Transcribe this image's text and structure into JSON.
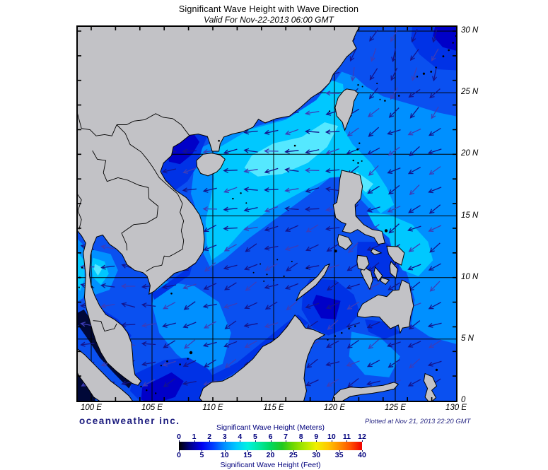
{
  "header": {
    "title": "Significant Wave Height with Wave Direction",
    "subtitle": "Valid For Nov-22-2013 06:00 GMT"
  },
  "map": {
    "x_axis_labels": [
      "100 E",
      "105 E",
      "110 E",
      "115 E",
      "120 E",
      "125 E",
      "130 E"
    ],
    "y_axis_labels": [
      "30 N",
      "25 N",
      "20 N",
      "15 N",
      "10 N",
      "5 N",
      "0"
    ],
    "land_color": "#c2c2c6",
    "coast_color": "#000000",
    "grid_color": "#000000",
    "palette": {
      "b0": "#000838",
      "b1": "#0000c8",
      "b2": "#0032e6",
      "b3": "#0a50f0",
      "b4": "#0090ff",
      "b5": "#00c8ff",
      "b6": "#55e8ff",
      "arrow": "#14148c",
      "arrow_alt": "#3d3db8"
    }
  },
  "branding": {
    "logo_text": "oceanweather inc.",
    "plotted_text": "Plotted at Nov 21, 2013 22:20 GMT"
  },
  "legend": {
    "meters_label": "Significant Wave Height (Meters)",
    "feet_label": "Significant Wave Height (Feet)",
    "meters_ticks": [
      "0",
      "1",
      "2",
      "3",
      "4",
      "5",
      "6",
      "7",
      "8",
      "9",
      "10",
      "11",
      "12"
    ],
    "feet_ticks": [
      "0",
      "5",
      "10",
      "15",
      "20",
      "25",
      "30",
      "35",
      "40"
    ],
    "gradient": [
      "#000000",
      "#00008b",
      "#0000f0",
      "#0040ff",
      "#0090ff",
      "#00c8ff",
      "#00f0e0",
      "#00e8a0",
      "#00d860",
      "#20c820",
      "#70d800",
      "#b0e800",
      "#f0f000",
      "#ffc800",
      "#ff9000",
      "#ff5000",
      "#f00000"
    ]
  }
}
